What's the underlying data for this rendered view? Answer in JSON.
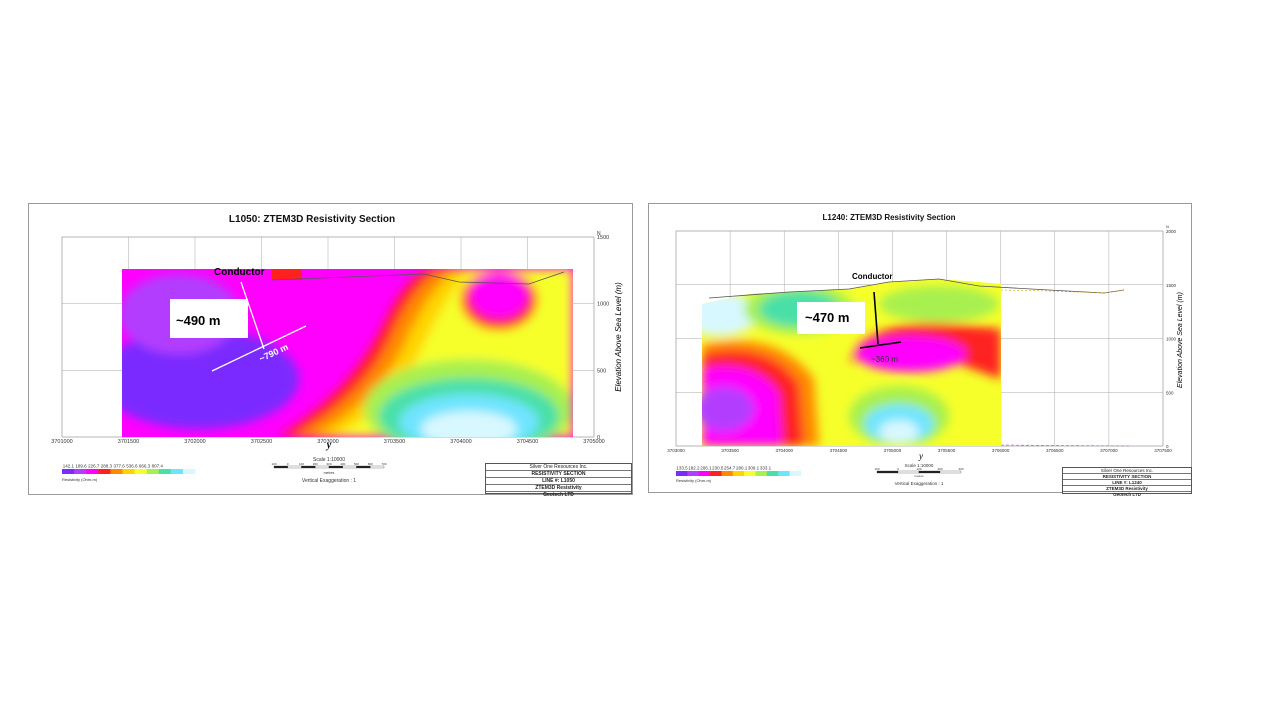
{
  "chart_data": [
    {
      "type": "heatmap",
      "title": "L1050: ZTEM3D Resistivity Section",
      "xlabel": "y",
      "ylabel": "Elevation Above Sea Level (m)",
      "x_ticks": [
        "3701000",
        "3701500",
        "3702000",
        "3702500",
        "3703000",
        "3703500",
        "3704000",
        "3704500",
        "3705000"
      ],
      "y_ticks": [
        "0",
        "500",
        "1000",
        "1500"
      ],
      "xlim": [
        3701000,
        3705000
      ],
      "ylim": [
        0,
        1500
      ],
      "north_label": "N",
      "colorbar_label": "Resistivity (Ohm-m)",
      "colorbar_ticks": [
        "142.1",
        "189.6",
        "226.7",
        "288.3",
        "377.6",
        "536.6",
        "666.3",
        "807.4"
      ],
      "colorbar_colors": [
        "#7a2cff",
        "#b23cff",
        "#ff00ff",
        "#ff2020",
        "#ff8a00",
        "#ffd400",
        "#f6ff2a",
        "#a8f050",
        "#48e0a8",
        "#6fe4ff",
        "#d8f8ff"
      ],
      "scale_text": "Scale 1:10000",
      "scale_unit": "metres",
      "scale_ticks": [
        "100",
        "0",
        "100",
        "200",
        "300",
        "400",
        "500",
        "600",
        "700"
      ],
      "vertical_exaggeration": "Vertical Exaggeration : 1",
      "annotations": {
        "conductor": "Conductor",
        "depth": "~490 m",
        "depth_partial": "m",
        "width": "~790 m"
      },
      "title_block": [
        "Silver One Resources Inc.",
        "RESISTIVITY SECTION",
        "LINE #:  L1050",
        "ZTEM3D Resistivity",
        "Geotech LTD"
      ]
    },
    {
      "type": "heatmap",
      "title": "L1240: ZTEM3D Resistivity Section",
      "xlabel": "y",
      "ylabel": "Elevation Above Sea Level (m)",
      "x_ticks": [
        "3703000",
        "3703500",
        "3704000",
        "3704500",
        "3705000",
        "3705500",
        "3706000",
        "3706500",
        "3707000",
        "3707500"
      ],
      "y_ticks": [
        "0",
        "500",
        "1000",
        "1500",
        "2000"
      ],
      "xlim": [
        3703000,
        3707500
      ],
      "ylim": [
        0,
        2000
      ],
      "north_label": "N",
      "colorbar_label": "Resistivity (Ohm-m)",
      "colorbar_ticks": [
        "133.5",
        "182.2",
        "206.1",
        "230.5",
        "254.7",
        "280.1",
        "309.1",
        "333.1"
      ],
      "colorbar_colors": [
        "#7a2cff",
        "#b23cff",
        "#ff00ff",
        "#ff2020",
        "#ff8a00",
        "#ffd400",
        "#f6ff2a",
        "#a8f050",
        "#48e0a8",
        "#6fe4ff",
        "#d8f8ff"
      ],
      "scale_text": "Scale 1:10000",
      "scale_unit": "metres",
      "scale_ticks": [
        "100",
        "0",
        "100",
        "200",
        "300"
      ],
      "vertical_exaggeration": "Vertical Exaggeration : 1",
      "annotations": {
        "conductor": "Conductor",
        "depth": "~470 m",
        "width": "~360 m"
      },
      "title_block": [
        "Silver One Resources Inc.",
        "RESISTIVITY SECTION",
        "LINE #:  L1240",
        "ZTEM3D Resistivity",
        "Geotech LTD"
      ]
    }
  ]
}
